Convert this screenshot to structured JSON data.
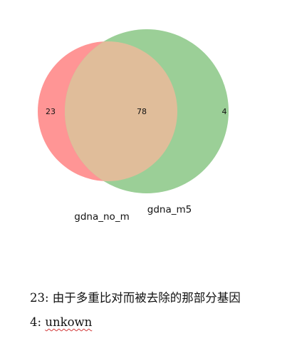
{
  "venn": {
    "sets": [
      {
        "label": "gdna_no_m",
        "color": "#ff9595",
        "only_count": "23"
      },
      {
        "label": "gdna_m5",
        "color": "#9bcf97",
        "only_count": "4"
      }
    ],
    "overlap": {
      "count": "78",
      "color": "#e0bd9a"
    }
  },
  "notes": [
    {
      "text": "23: 由于多重比对而被去除的那部分基因"
    },
    {
      "prefix": "4: ",
      "word": "unkown"
    }
  ]
}
